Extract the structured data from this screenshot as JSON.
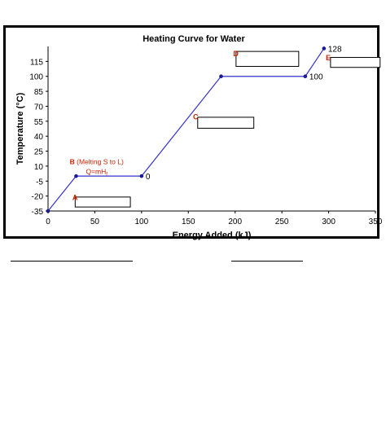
{
  "colors": {
    "line": "#3333cc",
    "point": "#1a1a99",
    "annotation": "#cc2200",
    "axis": "#000000"
  },
  "chart_data": {
    "type": "line",
    "title": "Heating Curve for Water",
    "xlabel": "Energy Added (kJ)",
    "ylabel": "Temperature (°C)",
    "xlim": [
      0,
      350
    ],
    "ylim": [
      -35,
      130
    ],
    "xticks": [
      0,
      50,
      100,
      150,
      200,
      250,
      300,
      350
    ],
    "yticks": [
      -35,
      -20,
      -5,
      10,
      25,
      40,
      55,
      70,
      85,
      100,
      115
    ],
    "grid": false,
    "legend": "none",
    "series": [
      {
        "x": [
          0,
          30,
          100,
          185,
          275,
          295
        ],
        "y": [
          -35,
          0,
          0,
          100,
          100,
          128
        ]
      }
    ],
    "point_labels": [
      {
        "text": "0",
        "x": 100,
        "y": 0
      },
      {
        "text": "100",
        "x": 275,
        "y": 100
      },
      {
        "text": "128",
        "x": 295,
        "y": 128
      }
    ],
    "annotations": [
      {
        "letter": "A",
        "letter_x": 26,
        "letter_y": -24
      },
      {
        "letter": "B",
        "text": " (Melting S to L)",
        "formula": "Q=mH",
        "subscript": "f",
        "x": 52,
        "y": 12
      },
      {
        "letter": "C",
        "letter_x": 155,
        "letter_y": 57
      },
      {
        "letter": "D",
        "letter_x": 198,
        "letter_y": 120
      },
      {
        "letter": "E",
        "letter_x": 297,
        "letter_y": 116
      }
    ],
    "answer_boxes": [
      {
        "for": "A",
        "x0": 29,
        "x1": 88,
        "y_top": -21,
        "y_bottom": -31
      },
      {
        "for": "C",
        "x0": 160,
        "x1": 220,
        "y_top": 59,
        "y_bottom": 48
      },
      {
        "for": "D",
        "x0": 201,
        "x1": 268,
        "y_top": 125,
        "y_bottom": 110
      },
      {
        "for": "E",
        "x0": 302,
        "x1": 355,
        "y_top": 119,
        "y_bottom": 109
      }
    ]
  }
}
